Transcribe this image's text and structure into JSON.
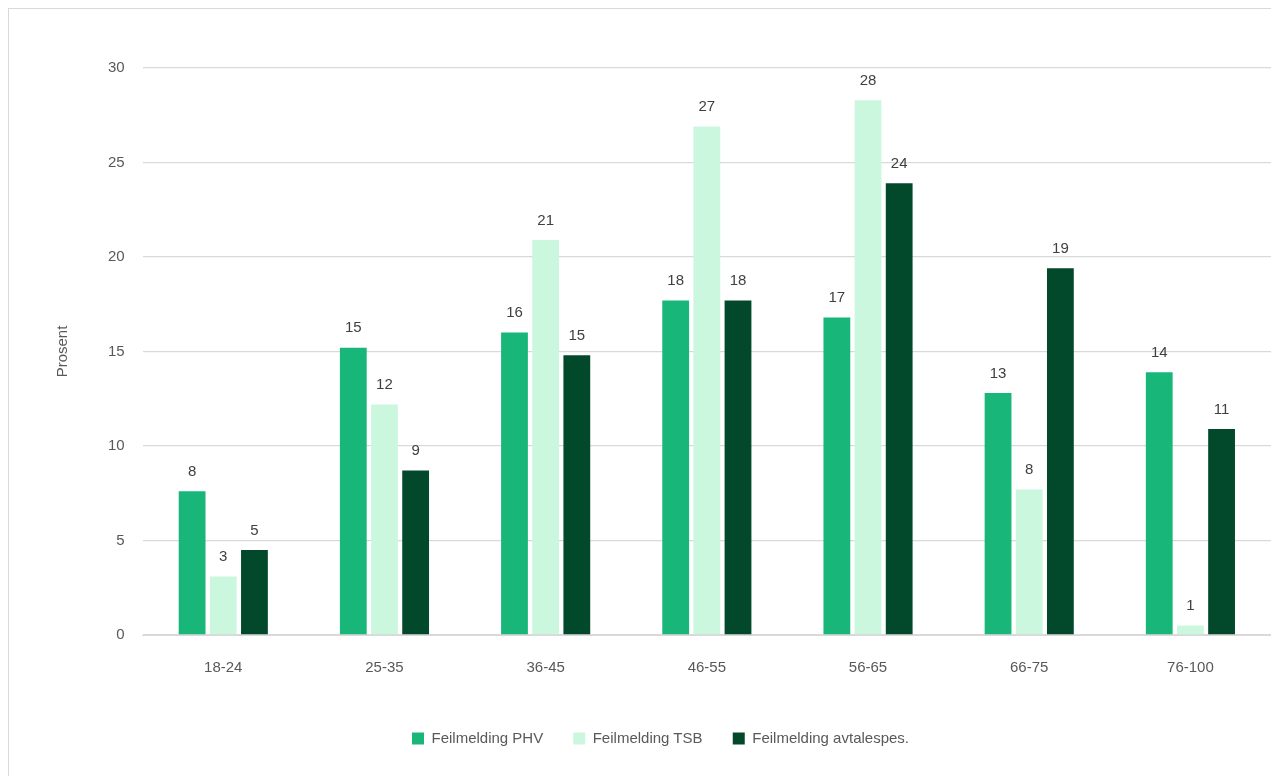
{
  "chart_data": {
    "type": "bar",
    "categories": [
      "18-24",
      "25-35",
      "36-45",
      "46-55",
      "56-65",
      "66-75",
      "76-100"
    ],
    "series": [
      {
        "name": "Feilmelding PHV",
        "color": "#18b779",
        "values": [
          7.6,
          15.2,
          16.0,
          17.7,
          16.8,
          12.8,
          13.9
        ],
        "value_labels": [
          "8",
          "15",
          "16",
          "18",
          "17",
          "13",
          "14"
        ]
      },
      {
        "name": "Feilmelding TSB",
        "color": "#ccf7df",
        "values": [
          3.1,
          12.2,
          20.9,
          26.9,
          28.3,
          7.7,
          0.5
        ],
        "value_labels": [
          "3",
          "12",
          "21",
          "27",
          "28",
          "8",
          "1"
        ]
      },
      {
        "name": "Feilmelding avtalespes.",
        "color": "#02482b",
        "values": [
          4.5,
          8.7,
          14.8,
          17.7,
          23.9,
          19.4,
          10.9
        ],
        "value_labels": [
          "5",
          "9",
          "15",
          "18",
          "24",
          "19",
          "11"
        ]
      }
    ],
    "ylabel": "Prosent",
    "ylim": [
      0,
      30
    ],
    "yticks": [
      0,
      5,
      10,
      15,
      20,
      25,
      30
    ],
    "grid": "y",
    "legend": "bottom"
  }
}
